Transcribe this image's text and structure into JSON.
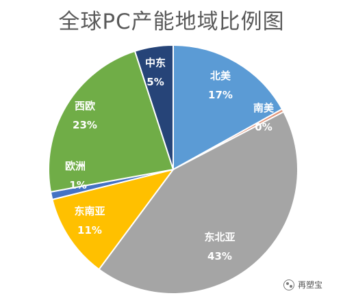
{
  "chart_data": {
    "type": "pie",
    "title": "全球PC产能地域比例图",
    "slices": [
      {
        "name": "北美",
        "value": 17,
        "label": "17%",
        "color": "#5b9bd5"
      },
      {
        "name": "南美",
        "value": 0.4,
        "label": "0%",
        "color": "#e2957a"
      },
      {
        "name": "东北亚",
        "value": 43,
        "label": "43%",
        "color": "#a5a5a5"
      },
      {
        "name": "东南亚",
        "value": 11,
        "label": "11%",
        "color": "#ffc000"
      },
      {
        "name": "欧洲",
        "value": 1,
        "label": "1%",
        "color": "#4472c4"
      },
      {
        "name": "西欧",
        "value": 23,
        "label": "23%",
        "color": "#70ad47"
      },
      {
        "name": "中东",
        "value": 5,
        "label": "5%",
        "color": "#264478"
      }
    ],
    "legend": "none"
  },
  "watermark": {
    "text": "再塑宝",
    "icon": "chat-bubble-icon"
  }
}
